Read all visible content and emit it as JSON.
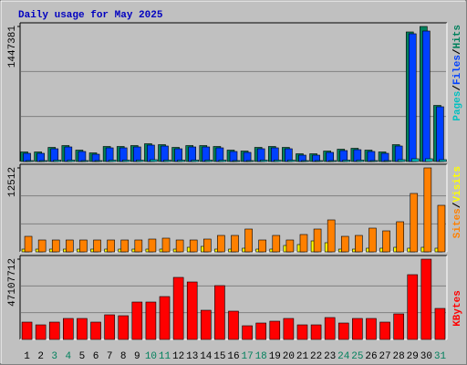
{
  "chart_data": [
    {
      "type": "bar",
      "title": "Daily usage for May 2025",
      "legend_separator": "/",
      "ylim": [
        0,
        1447381
      ],
      "yticks": [
        1447381
      ],
      "series": [
        {
          "name": "Hits",
          "color": "#00805C",
          "values": [
            102690,
            102690,
            151590,
            171150,
            122250,
            92910,
            161370,
            161370,
            171150,
            190710,
            180930,
            151590,
            171150,
            171150,
            161370,
            122250,
            112470,
            151590,
            161370,
            151590,
            83130,
            83130,
            112470,
            132030,
            141810,
            122250,
            102690,
            180930,
            1388760,
            1447381,
            601470
          ]
        },
        {
          "name": "Files",
          "color": "#0040FF",
          "values": [
            88020,
            88020,
            136920,
            156480,
            107580,
            78240,
            146700,
            146700,
            156480,
            176040,
            166260,
            136920,
            156480,
            156480,
            146700,
            107580,
            97800,
            136920,
            146700,
            136920,
            68460,
            68460,
            97800,
            117360,
            127140,
            107580,
            88020,
            166260,
            1369200,
            1398540,
            586800
          ]
        },
        {
          "name": "Pages",
          "color": "#00C0C0",
          "values": [
            9780,
            9780,
            14670,
            14670,
            9780,
            9780,
            14670,
            14670,
            14670,
            19560,
            14670,
            14670,
            14670,
            14670,
            14670,
            9780,
            9780,
            14670,
            14670,
            14670,
            9780,
            9780,
            9780,
            14670,
            14670,
            9780,
            9780,
            19560,
            29340,
            29340,
            19560
          ]
        }
      ]
    },
    {
      "type": "bar",
      "legend_separator": "/",
      "ylim": [
        0,
        12512
      ],
      "yticks": [
        12512
      ],
      "series": [
        {
          "name": "Visits",
          "color": "#FFFF00",
          "values": [
            408,
            408,
            408,
            408,
            408,
            408,
            408,
            408,
            408,
            408,
            408,
            408,
            680,
            816,
            408,
            408,
            544,
            408,
            408,
            952,
            1088,
            1632,
            1360,
            408,
            408,
            544,
            544,
            680,
            544,
            680,
            544
          ]
        },
        {
          "name": "Sites",
          "color": "#FF8000",
          "values": [
            2312,
            1768,
            1768,
            1768,
            1768,
            1768,
            1768,
            1768,
            1768,
            1904,
            2040,
            1768,
            1768,
            1904,
            2448,
            2448,
            3400,
            1768,
            2448,
            1768,
            2584,
            3400,
            4760,
            2312,
            2448,
            3536,
            3128,
            4488,
            8704,
            12512,
            6936
          ]
        }
      ]
    },
    {
      "type": "bar",
      "ylim": [
        0,
        47107712
      ],
      "yticks": [
        47107712
      ],
      "categories": [
        "1",
        "2",
        "3",
        "4",
        "5",
        "6",
        "7",
        "8",
        "9",
        "10",
        "11",
        "12",
        "13",
        "14",
        "15",
        "16",
        "17",
        "18",
        "19",
        "20",
        "21",
        "22",
        "23",
        "24",
        "25",
        "26",
        "27",
        "28",
        "29",
        "30",
        "31"
      ],
      "category_colors": [
        "#000000",
        "#000000",
        "#00805C",
        "#00805C",
        "#000000",
        "#000000",
        "#000000",
        "#000000",
        "#000000",
        "#00805C",
        "#00805C",
        "#000000",
        "#000000",
        "#000000",
        "#000000",
        "#000000",
        "#00805C",
        "#00805C",
        "#000000",
        "#000000",
        "#000000",
        "#000000",
        "#000000",
        "#00805C",
        "#00805C",
        "#000000",
        "#000000",
        "#000000",
        "#000000",
        "#000000",
        "#00805C"
      ],
      "series": [
        {
          "name": "KBytes",
          "color": "#FF0000",
          "values": [
            10170985,
            8565040,
            10170985,
            12312245,
            12312245,
            10170985,
            14453505,
            13918190,
            21947915,
            21947915,
            25159805,
            36401420,
            33724845,
            17130080,
            31583585,
            16594765,
            8029725,
            9635670,
            10706300,
            12312245,
            8565040,
            8565040,
            12847560,
            9635670,
            12312245,
            12312245,
            10170985,
            14988820,
            38007365,
            47107712,
            18200710
          ]
        }
      ]
    }
  ]
}
